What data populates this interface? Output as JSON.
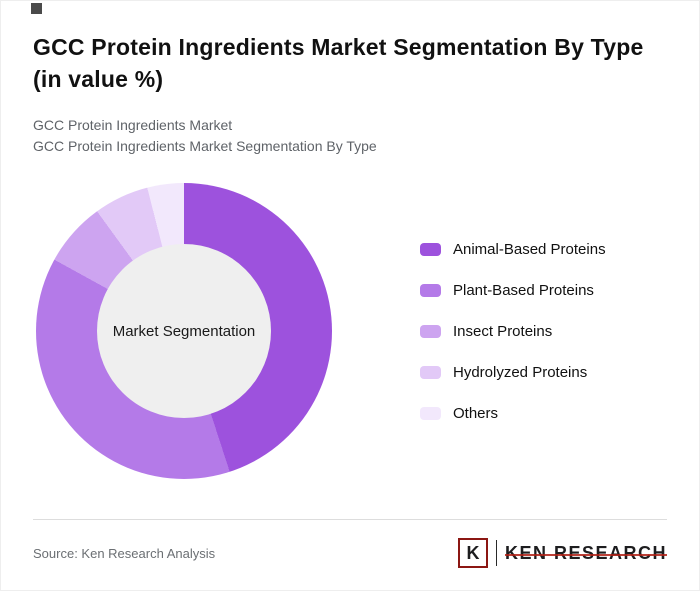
{
  "page": {
    "title": "GCC Protein Ingredients Market Segmentation By Type (in value %)",
    "subtitle_line1": "GCC Protein Ingredients Market",
    "subtitle_line2": "GCC Protein Ingredients Market Segmentation By Type",
    "source": "Source: Ken Research Analysis"
  },
  "brand": {
    "mark_letter": "K",
    "name": "KEN RESEARCH",
    "accent_color": "#8c1713"
  },
  "chart_data": {
    "type": "pie",
    "variant": "donut",
    "title": "GCC Protein Ingredients Market Segmentation By Type (in value %)",
    "center_label": "Market Segmentation",
    "legend_position": "right",
    "hole_color": "#efefef",
    "segments": [
      {
        "label": "Animal-Based Proteins",
        "value": 45,
        "color": "#9d52dd"
      },
      {
        "label": "Plant-Based Proteins",
        "value": 38,
        "color": "#b47ae8"
      },
      {
        "label": "Insect Proteins",
        "value": 7,
        "color": "#cda4f0"
      },
      {
        "label": "Hydrolyzed Proteins",
        "value": 6,
        "color": "#e2c9f7"
      },
      {
        "label": "Others",
        "value": 4,
        "color": "#f2e8fc"
      }
    ]
  }
}
